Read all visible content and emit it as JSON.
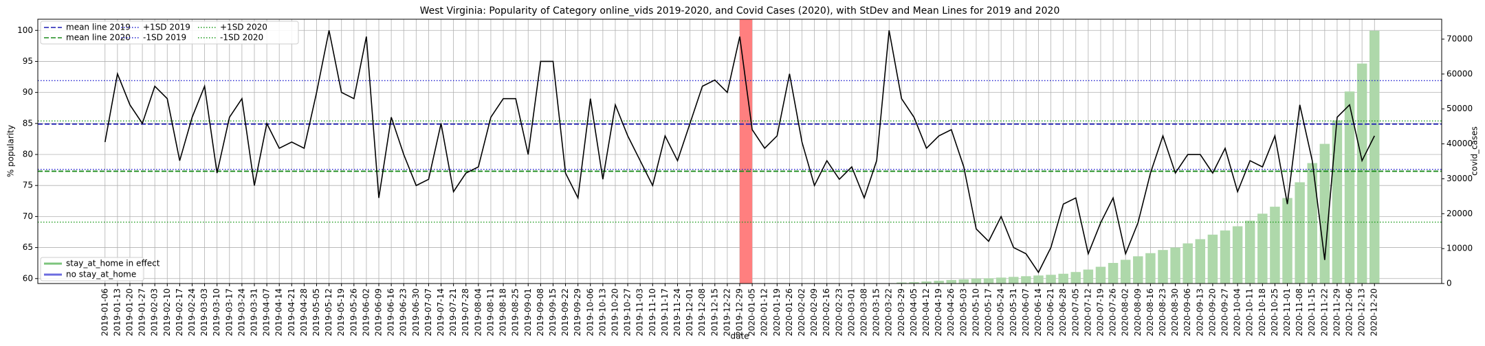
{
  "chart_data": {
    "type": "line",
    "title": "West Virginia: Popularity of Category online_vids 2019-2020, and Covid Cases (2020), with StDev and Mean Lines for 2019 and 2020",
    "x_label": "date",
    "y_label": "% popularity",
    "y2_label": "covid_cases",
    "categories": [
      "2019-01-06",
      "2019-01-13",
      "2019-01-20",
      "2019-01-27",
      "2019-02-03",
      "2019-02-10",
      "2019-02-17",
      "2019-02-24",
      "2019-03-03",
      "2019-03-10",
      "2019-03-17",
      "2019-03-24",
      "2019-03-31",
      "2019-04-07",
      "2019-04-14",
      "2019-04-21",
      "2019-04-28",
      "2019-05-05",
      "2019-05-12",
      "2019-05-19",
      "2019-05-26",
      "2019-06-02",
      "2019-06-09",
      "2019-06-16",
      "2019-06-23",
      "2019-06-30",
      "2019-07-07",
      "2019-07-14",
      "2019-07-21",
      "2019-07-28",
      "2019-08-04",
      "2019-08-11",
      "2019-08-18",
      "2019-08-25",
      "2019-09-01",
      "2019-09-08",
      "2019-09-15",
      "2019-09-22",
      "2019-09-29",
      "2019-10-06",
      "2019-10-13",
      "2019-10-20",
      "2019-10-27",
      "2019-11-03",
      "2019-11-10",
      "2019-11-17",
      "2019-11-24",
      "2019-12-01",
      "2019-12-08",
      "2019-12-15",
      "2019-12-22",
      "2019-12-29",
      "2020-01-05",
      "2020-01-12",
      "2020-01-19",
      "2020-01-26",
      "2020-02-02",
      "2020-02-09",
      "2020-02-16",
      "2020-02-23",
      "2020-03-01",
      "2020-03-08",
      "2020-03-15",
      "2020-03-22",
      "2020-03-29",
      "2020-04-05",
      "2020-04-12",
      "2020-04-19",
      "2020-04-26",
      "2020-05-03",
      "2020-05-10",
      "2020-05-17",
      "2020-05-24",
      "2020-05-31",
      "2020-06-07",
      "2020-06-14",
      "2020-06-21",
      "2020-06-28",
      "2020-07-05",
      "2020-07-12",
      "2020-07-19",
      "2020-07-26",
      "2020-08-02",
      "2020-08-09",
      "2020-08-16",
      "2020-08-23",
      "2020-08-30",
      "2020-09-06",
      "2020-09-13",
      "2020-09-20",
      "2020-09-27",
      "2020-10-04",
      "2020-10-11",
      "2020-10-18",
      "2020-10-25",
      "2020-11-01",
      "2020-11-08",
      "2020-11-15",
      "2020-11-22",
      "2020-11-29",
      "2020-12-06",
      "2020-12-13",
      "2020-12-20"
    ],
    "series": [
      {
        "type": "line",
        "color": "#000000",
        "values": [
          82,
          93,
          88,
          85,
          91,
          89,
          79,
          86,
          91,
          77,
          86,
          89,
          75,
          85,
          81,
          82,
          81,
          90,
          100,
          90,
          89,
          99,
          73,
          86,
          80,
          75,
          76,
          85,
          74,
          77,
          78,
          86,
          89,
          89,
          80,
          95,
          95,
          77,
          73,
          89,
          76,
          88,
          83,
          79,
          75,
          83,
          79,
          85,
          91,
          92,
          90,
          99,
          84,
          81,
          83,
          93,
          82,
          75,
          79,
          76,
          78,
          73,
          79,
          100,
          89,
          86,
          81,
          83,
          84,
          78,
          68,
          66,
          70,
          65,
          64,
          61,
          65,
          72,
          73,
          64,
          69,
          73,
          64,
          69,
          77,
          83,
          77,
          80,
          80,
          77,
          81,
          74,
          79,
          78,
          83,
          72,
          88,
          79,
          63,
          86,
          88,
          79,
          83
        ]
      },
      {
        "type": "bar",
        "axis": "y2",
        "color": "#aed8aa",
        "values": [
          null,
          null,
          null,
          null,
          null,
          null,
          null,
          null,
          null,
          null,
          null,
          null,
          null,
          null,
          null,
          null,
          null,
          null,
          null,
          null,
          null,
          null,
          null,
          null,
          null,
          null,
          null,
          null,
          null,
          null,
          null,
          null,
          null,
          null,
          null,
          null,
          null,
          null,
          null,
          null,
          null,
          null,
          null,
          null,
          null,
          null,
          null,
          null,
          null,
          null,
          null,
          null,
          0,
          0,
          0,
          0,
          0,
          0,
          0,
          0,
          0,
          0,
          0,
          100,
          300,
          400,
          600,
          800,
          1000,
          1200,
          1400,
          1500,
          1700,
          1900,
          2100,
          2300,
          2500,
          2800,
          3300,
          4000,
          4800,
          5900,
          6800,
          7800,
          8700,
          9600,
          10300,
          11500,
          12700,
          14000,
          15200,
          16400,
          18000,
          20000,
          22000,
          24500,
          29000,
          34500,
          40000,
          46700,
          55000,
          63000,
          72400
        ]
      }
    ],
    "reference_lines": [
      {
        "name": "mean line 2019",
        "value": 84.9,
        "color": "#1a1ab4",
        "style": "dashed"
      },
      {
        "name": "mean line 2020",
        "value": 77.3,
        "color": "#1a8a1a",
        "style": "dashed"
      },
      {
        "name": "+1SD 2019",
        "value": 91.9,
        "color": "#2020d0",
        "style": "dotted"
      },
      {
        "name": "-1SD 2019",
        "value": 77.6,
        "color": "#2020d0",
        "style": "dotted"
      },
      {
        "name": "+1SD 2020",
        "value": 85.4,
        "color": "#1a9a1a",
        "style": "dotted"
      },
      {
        "name": "-1SD 2020",
        "value": 69.1,
        "color": "#1a9a1a",
        "style": "dotted"
      }
    ],
    "status_legend": [
      {
        "name": "stay_at_home in effect",
        "color": "#7cc47c"
      },
      {
        "name": "no stay_at_home",
        "color": "#6b6bdf"
      }
    ],
    "highlight_span": {
      "from": "2019-12-29",
      "to": "2020-01-05",
      "color": "#ff7f7f"
    },
    "ylim": [
      59.2,
      101.8
    ],
    "yticks": [
      60,
      65,
      70,
      75,
      80,
      85,
      90,
      95,
      100
    ],
    "y2lim": [
      0,
      75700
    ],
    "y2ticks": [
      0,
      10000,
      20000,
      30000,
      40000,
      50000,
      60000,
      70000
    ],
    "grid": true
  }
}
